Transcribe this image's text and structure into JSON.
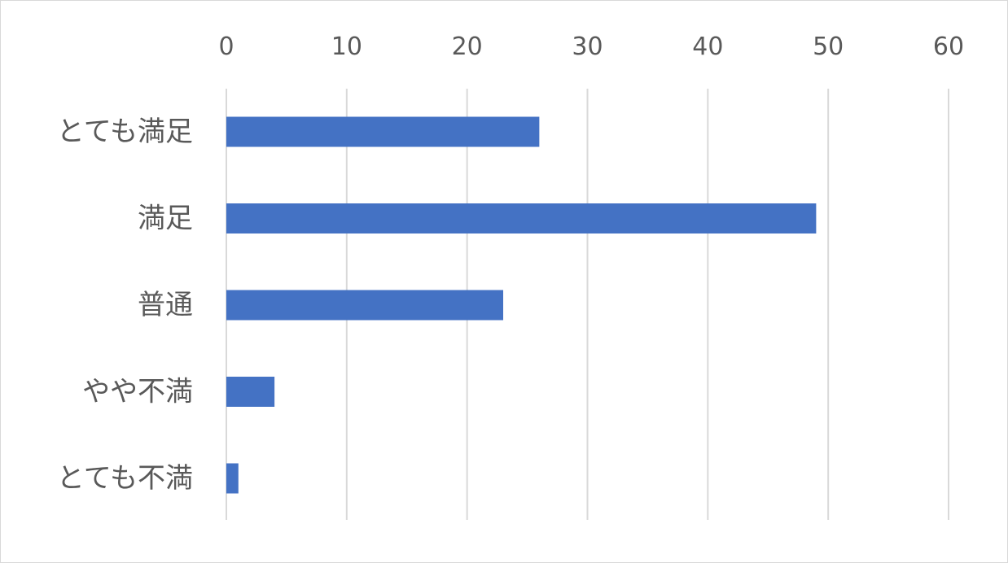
{
  "chart_data": {
    "type": "bar",
    "orientation": "horizontal",
    "categories": [
      "とても満足",
      "満足",
      "普通",
      "やや不満",
      "とても不満"
    ],
    "values": [
      26,
      49,
      23,
      4,
      1
    ],
    "xlim": [
      0,
      60
    ],
    "x_ticks": [
      0,
      10,
      20,
      30,
      40,
      50,
      60
    ],
    "x_axis_position": "top",
    "grid": true,
    "bar_color": "#4472C4",
    "grid_color": "#d9d9d9"
  }
}
